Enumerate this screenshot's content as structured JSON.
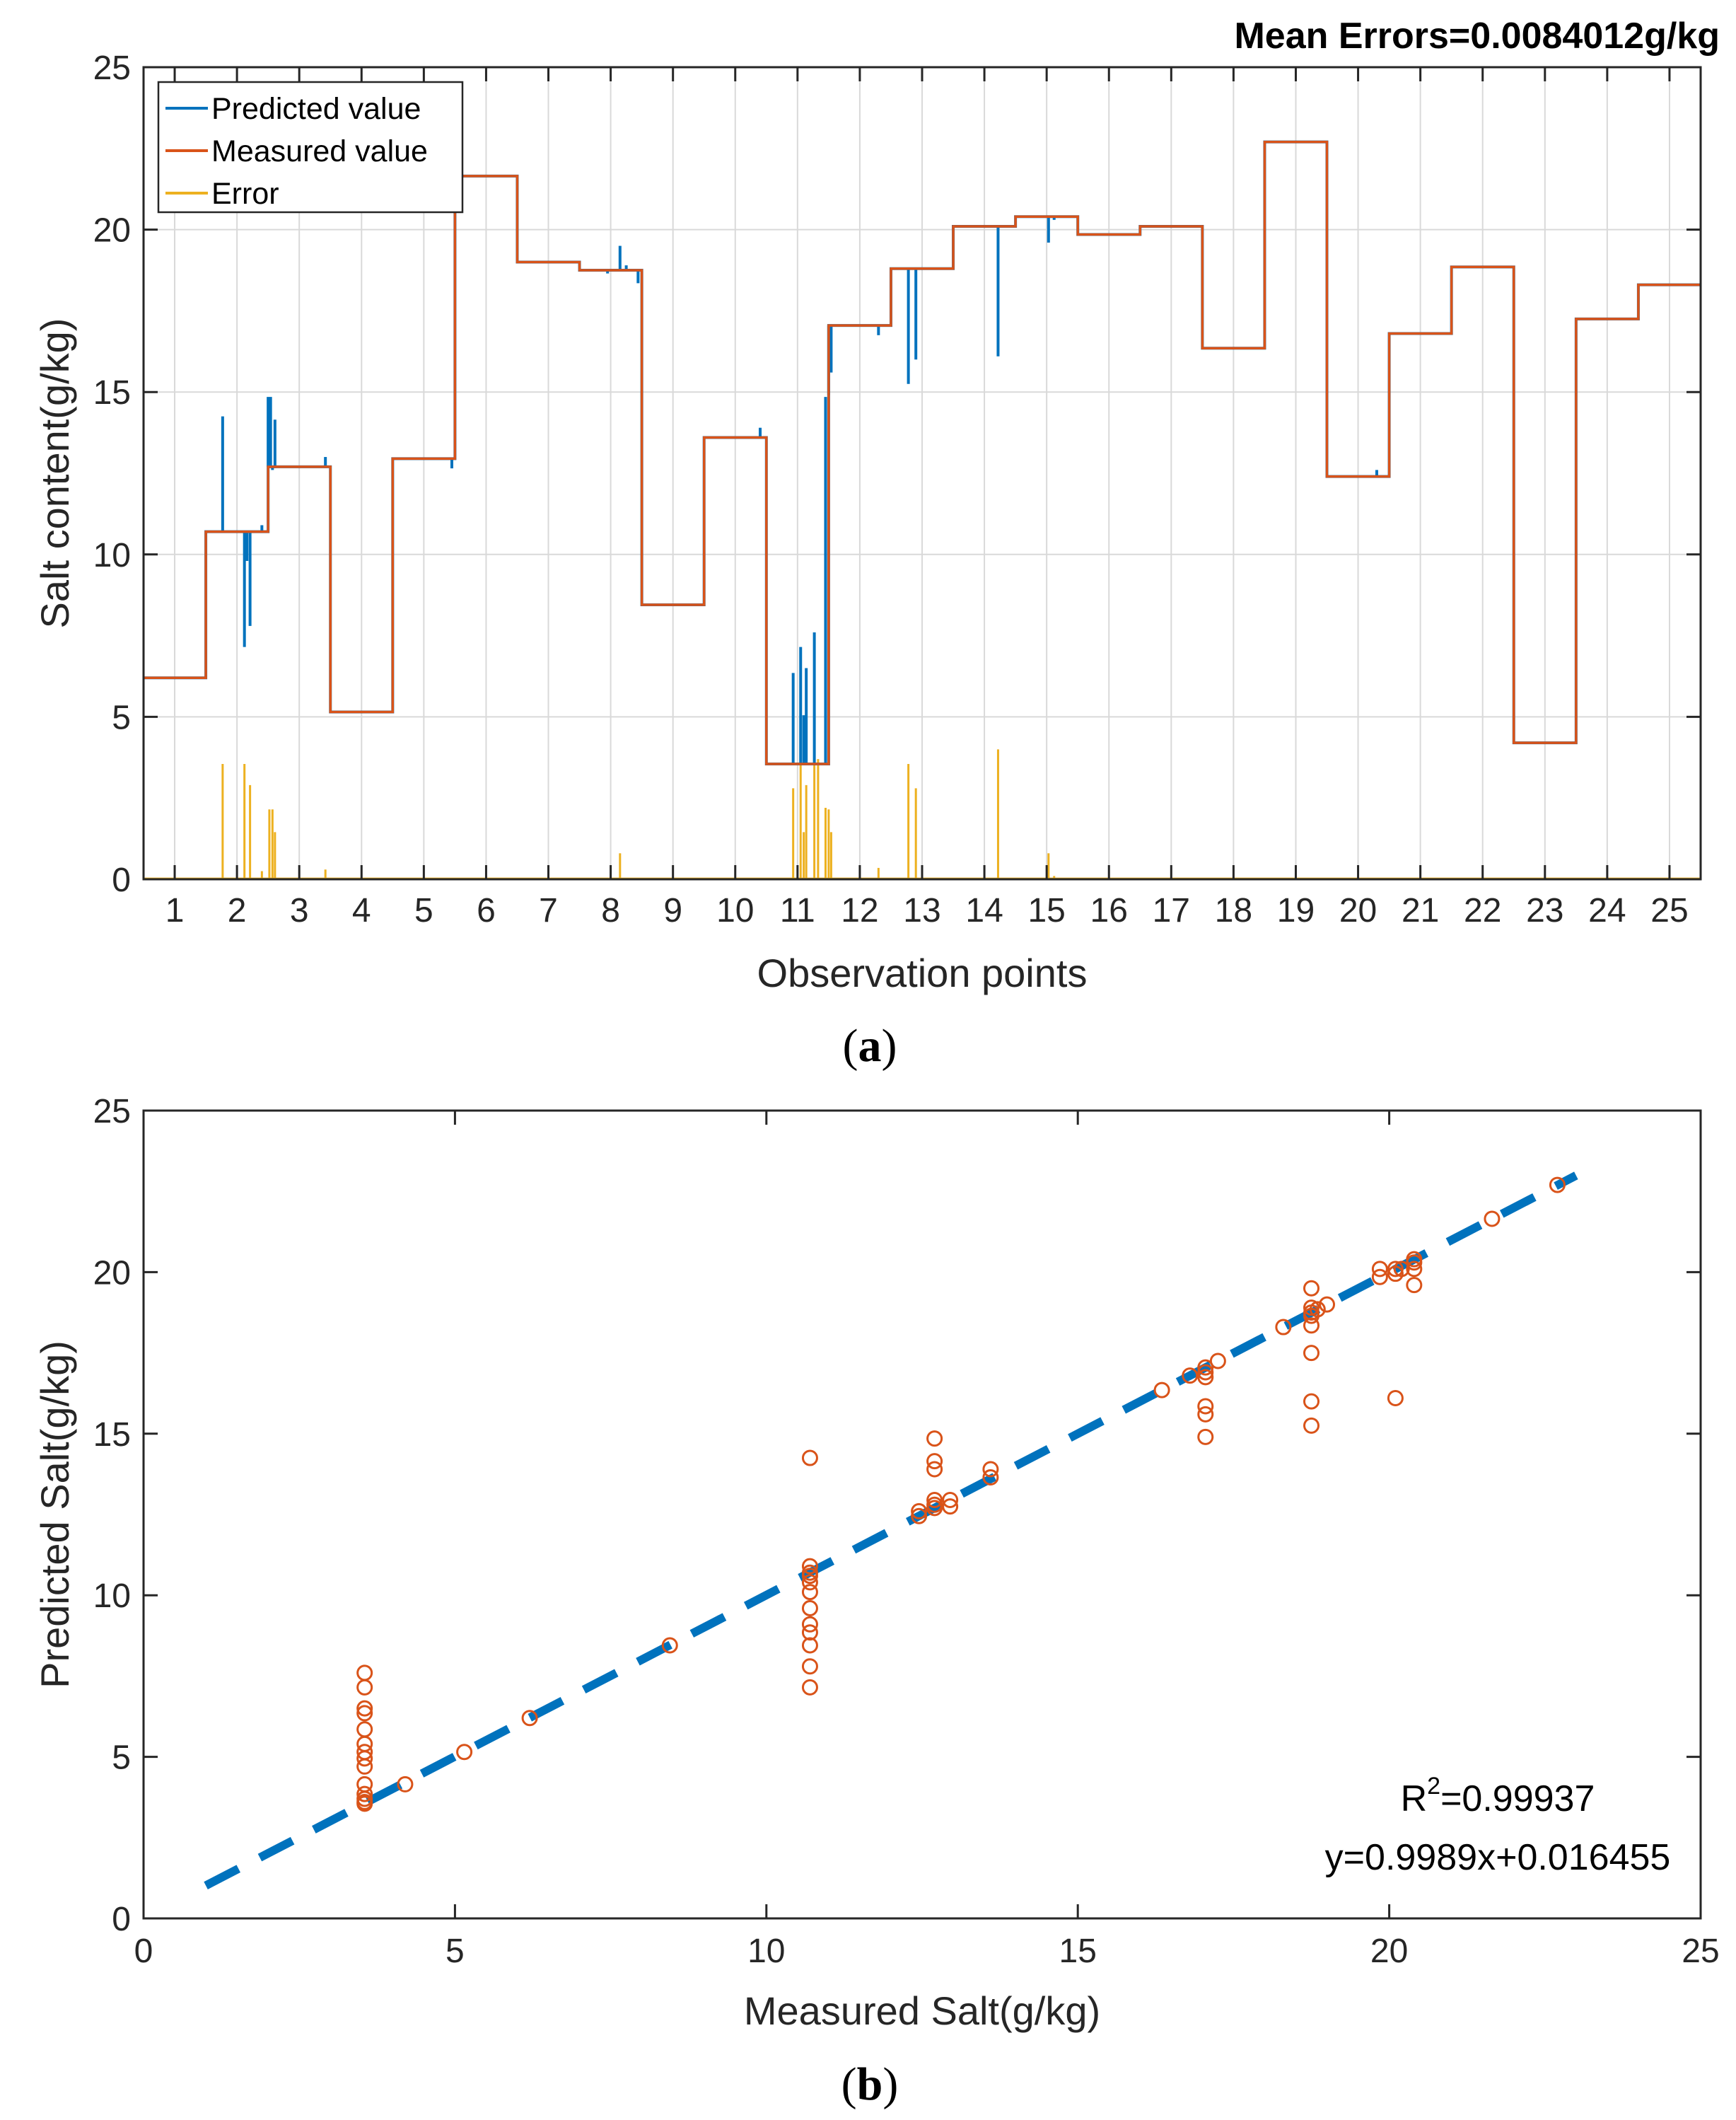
{
  "colors": {
    "predicted": "#0072BD",
    "measured": "#D95319",
    "error": "#EDB120",
    "fit": "#0072BD",
    "grid": "#d9d9d9",
    "axis": "#262626"
  },
  "chart_data": [
    {
      "id": "a",
      "type": "line",
      "panel_label": "a",
      "title": "Mean Errors=0.0084012g/kg",
      "xlabel": "Observation points",
      "ylabel": "Salt content(g/kg)",
      "xlim": [
        0.5,
        25.5
      ],
      "ylim": [
        0,
        25
      ],
      "yticks": [
        0,
        5,
        10,
        15,
        20,
        25
      ],
      "xtick_labels": [
        "1",
        "2",
        "3",
        "4",
        "5",
        "6",
        "7",
        "8",
        "9",
        "10",
        "11",
        "12",
        "13",
        "14",
        "15",
        "16",
        "17",
        "18",
        "19",
        "20",
        "21",
        "22",
        "23",
        "24",
        "25"
      ],
      "legend": [
        "Predicted value",
        "Measured value",
        "Error"
      ],
      "legend_position": "top-left",
      "grid": true,
      "measured_steps": [
        {
          "from": 0.5,
          "to": 1.5,
          "value": 6.2
        },
        {
          "from": 1.5,
          "to": 2.5,
          "value": 10.7
        },
        {
          "from": 2.5,
          "to": 3.5,
          "value": 12.7
        },
        {
          "from": 3.5,
          "to": 4.5,
          "value": 5.15
        },
        {
          "from": 4.5,
          "to": 5.5,
          "value": 12.95
        },
        {
          "from": 5.5,
          "to": 6.5,
          "value": 21.65
        },
        {
          "from": 6.5,
          "to": 7.5,
          "value": 19.0
        },
        {
          "from": 7.5,
          "to": 8.5,
          "value": 18.75
        },
        {
          "from": 8.5,
          "to": 9.5,
          "value": 8.45
        },
        {
          "from": 9.5,
          "to": 10.5,
          "value": 13.6
        },
        {
          "from": 10.5,
          "to": 11.5,
          "value": 3.55
        },
        {
          "from": 11.5,
          "to": 12.5,
          "value": 17.05
        },
        {
          "from": 12.5,
          "to": 13.5,
          "value": 18.8
        },
        {
          "from": 13.5,
          "to": 14.5,
          "value": 20.1
        },
        {
          "from": 14.5,
          "to": 15.5,
          "value": 20.4
        },
        {
          "from": 15.5,
          "to": 16.5,
          "value": 19.85
        },
        {
          "from": 16.5,
          "to": 17.5,
          "value": 20.1
        },
        {
          "from": 17.5,
          "to": 18.5,
          "value": 16.35
        },
        {
          "from": 18.5,
          "to": 19.5,
          "value": 22.7
        },
        {
          "from": 19.5,
          "to": 20.5,
          "value": 12.4
        },
        {
          "from": 20.5,
          "to": 21.5,
          "value": 16.8
        },
        {
          "from": 21.5,
          "to": 22.5,
          "value": 18.85
        },
        {
          "from": 22.5,
          "to": 23.5,
          "value": 4.2
        },
        {
          "from": 23.5,
          "to": 24.5,
          "value": 17.25
        },
        {
          "from": 24.5,
          "to": 25.5,
          "value": 18.3
        }
      ],
      "predicted_spikes": [
        {
          "x": 1.77,
          "value": 14.25
        },
        {
          "x": 2.12,
          "value": 7.15
        },
        {
          "x": 2.16,
          "value": 9.8
        },
        {
          "x": 2.21,
          "value": 7.8
        },
        {
          "x": 2.4,
          "value": 10.9
        },
        {
          "x": 2.5,
          "value": 14.85
        },
        {
          "x": 2.54,
          "value": 14.85
        },
        {
          "x": 2.57,
          "value": 12.6
        },
        {
          "x": 2.61,
          "value": 14.15
        },
        {
          "x": 3.42,
          "value": 13.0
        },
        {
          "x": 5.45,
          "value": 12.65
        },
        {
          "x": 7.95,
          "value": 18.65
        },
        {
          "x": 8.15,
          "value": 19.5
        },
        {
          "x": 8.25,
          "value": 18.9
        },
        {
          "x": 8.44,
          "value": 18.35
        },
        {
          "x": 10.4,
          "value": 13.9
        },
        {
          "x": 10.93,
          "value": 6.35
        },
        {
          "x": 11.05,
          "value": 7.15
        },
        {
          "x": 11.1,
          "value": 5.05
        },
        {
          "x": 11.14,
          "value": 6.5
        },
        {
          "x": 11.27,
          "value": 7.6
        },
        {
          "x": 11.45,
          "value": 14.85
        },
        {
          "x": 11.5,
          "value": 14.9
        },
        {
          "x": 11.54,
          "value": 15.6
        },
        {
          "x": 12.3,
          "value": 16.75
        },
        {
          "x": 12.78,
          "value": 15.25
        },
        {
          "x": 12.9,
          "value": 16.0
        },
        {
          "x": 14.22,
          "value": 16.1
        },
        {
          "x": 14.3,
          "value": 20.1
        },
        {
          "x": 15.03,
          "value": 19.6
        },
        {
          "x": 15.12,
          "value": 20.3
        },
        {
          "x": 20.3,
          "value": 12.6
        }
      ],
      "error_spikes": [
        {
          "x": 1.77,
          "value": 3.55
        },
        {
          "x": 2.12,
          "value": 3.55
        },
        {
          "x": 2.21,
          "value": 2.9
        },
        {
          "x": 2.4,
          "value": 0.25
        },
        {
          "x": 2.52,
          "value": 2.15
        },
        {
          "x": 2.57,
          "value": 2.15
        },
        {
          "x": 2.61,
          "value": 1.45
        },
        {
          "x": 3.42,
          "value": 0.3
        },
        {
          "x": 8.15,
          "value": 0.8
        },
        {
          "x": 10.93,
          "value": 2.8
        },
        {
          "x": 11.05,
          "value": 3.6
        },
        {
          "x": 11.1,
          "value": 1.45
        },
        {
          "x": 11.14,
          "value": 2.9
        },
        {
          "x": 11.27,
          "value": 4.05
        },
        {
          "x": 11.33,
          "value": 3.7
        },
        {
          "x": 11.45,
          "value": 2.2
        },
        {
          "x": 11.5,
          "value": 2.15
        },
        {
          "x": 11.54,
          "value": 1.45
        },
        {
          "x": 12.3,
          "value": 0.35
        },
        {
          "x": 12.78,
          "value": 3.55
        },
        {
          "x": 12.9,
          "value": 2.8
        },
        {
          "x": 14.22,
          "value": 4.0
        },
        {
          "x": 15.03,
          "value": 0.8
        },
        {
          "x": 15.12,
          "value": 0.1
        }
      ]
    },
    {
      "id": "b",
      "type": "scatter",
      "panel_label": "b",
      "xlabel": "Measured Salt(g/kg)",
      "ylabel": "Predicted Salt(g/kg)",
      "xlim": [
        0,
        25
      ],
      "ylim": [
        0,
        25
      ],
      "xticks": [
        0,
        5,
        10,
        15,
        20,
        25
      ],
      "yticks": [
        0,
        5,
        10,
        15,
        20,
        25
      ],
      "grid": false,
      "annotation_r2_prefix": "R",
      "annotation_r2_sup": "2",
      "annotation_r2_value": "=0.99937",
      "annotation_equation": "y=0.9989x+0.016455",
      "fit_line": {
        "slope": 0.9989,
        "intercept": 0.016455,
        "x_range": [
          1,
          23
        ]
      },
      "points": [
        [
          3.55,
          7.6
        ],
        [
          3.55,
          7.15
        ],
        [
          3.55,
          6.5
        ],
        [
          3.55,
          6.35
        ],
        [
          3.55,
          5.85
        ],
        [
          3.55,
          5.4
        ],
        [
          3.55,
          5.15
        ],
        [
          3.55,
          4.95
        ],
        [
          3.55,
          4.7
        ],
        [
          3.55,
          4.15
        ],
        [
          3.55,
          3.85
        ],
        [
          3.55,
          3.7
        ],
        [
          3.55,
          3.6
        ],
        [
          3.55,
          3.55
        ],
        [
          4.2,
          4.15
        ],
        [
          5.15,
          5.15
        ],
        [
          6.2,
          6.2
        ],
        [
          8.45,
          8.45
        ],
        [
          10.7,
          14.25
        ],
        [
          10.7,
          10.9
        ],
        [
          10.7,
          10.7
        ],
        [
          10.7,
          10.6
        ],
        [
          10.7,
          10.4
        ],
        [
          10.7,
          10.1
        ],
        [
          10.7,
          9.6
        ],
        [
          10.7,
          9.1
        ],
        [
          10.7,
          8.85
        ],
        [
          10.7,
          8.45
        ],
        [
          10.7,
          7.8
        ],
        [
          10.7,
          7.15
        ],
        [
          12.45,
          12.6
        ],
        [
          12.45,
          12.45
        ],
        [
          12.7,
          14.85
        ],
        [
          12.7,
          14.15
        ],
        [
          12.7,
          13.9
        ],
        [
          12.7,
          12.95
        ],
        [
          12.7,
          12.8
        ],
        [
          12.7,
          12.7
        ],
        [
          12.95,
          12.95
        ],
        [
          12.95,
          12.75
        ],
        [
          13.6,
          13.9
        ],
        [
          13.6,
          13.65
        ],
        [
          16.35,
          16.35
        ],
        [
          16.8,
          16.8
        ],
        [
          17.05,
          17.05
        ],
        [
          17.05,
          16.9
        ],
        [
          17.05,
          16.75
        ],
        [
          17.05,
          15.85
        ],
        [
          17.05,
          15.6
        ],
        [
          17.05,
          14.9
        ],
        [
          17.25,
          17.25
        ],
        [
          18.3,
          18.3
        ],
        [
          18.75,
          19.5
        ],
        [
          18.75,
          18.9
        ],
        [
          18.75,
          18.75
        ],
        [
          18.75,
          18.65
        ],
        [
          18.75,
          18.35
        ],
        [
          18.75,
          17.5
        ],
        [
          18.75,
          16.0
        ],
        [
          18.75,
          15.25
        ],
        [
          18.85,
          18.85
        ],
        [
          19.0,
          19.0
        ],
        [
          19.85,
          19.85
        ],
        [
          19.85,
          20.1
        ],
        [
          20.1,
          20.1
        ],
        [
          20.1,
          19.95
        ],
        [
          20.1,
          16.1
        ],
        [
          20.2,
          20.1
        ],
        [
          20.4,
          20.4
        ],
        [
          20.4,
          20.3
        ],
        [
          20.4,
          20.1
        ],
        [
          20.4,
          19.6
        ],
        [
          21.65,
          21.65
        ],
        [
          22.7,
          22.7
        ]
      ]
    }
  ]
}
